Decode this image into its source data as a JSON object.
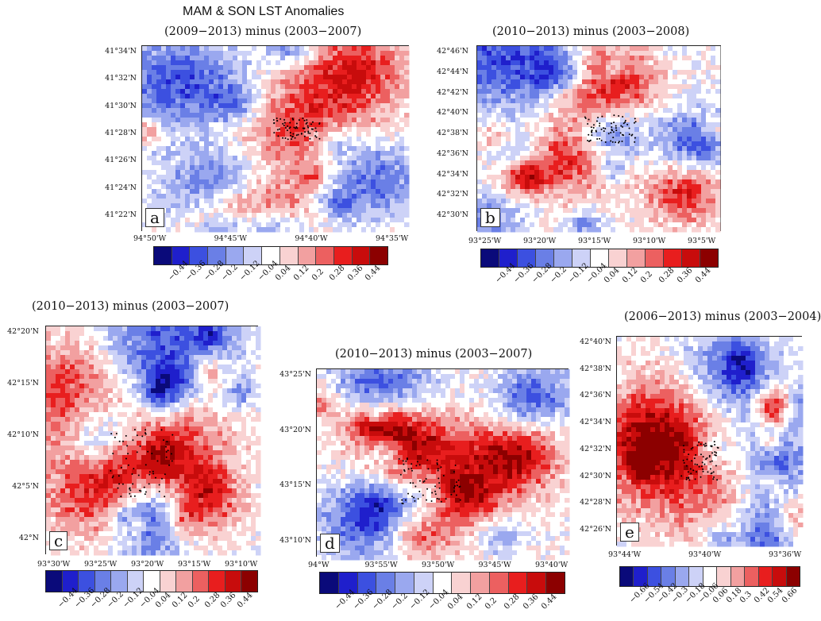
{
  "main_title": "MAM & SON LST Anomalies",
  "colors": [
    "#0a0a7a",
    "#1f1fcc",
    "#3c50e0",
    "#6a7fe6",
    "#9aa8ef",
    "#cdd2f7",
    "#ffffff",
    "#f9d2d2",
    "#f2a0a0",
    "#ec6060",
    "#e81e1e",
    "#c80c0c",
    "#8c0000"
  ],
  "chart_data": [
    {
      "panel": "a",
      "type": "heatmap",
      "title": "(2009−2013) minus (2003−2007)",
      "y_ticks": [
        "41°34'N",
        "41°32'N",
        "41°30'N",
        "41°28'N",
        "41°26'N",
        "41°24'N",
        "41°22'N"
      ],
      "x_ticks": [
        "94°50'W",
        "94°45'W",
        "94°40'W",
        "94°35'W"
      ],
      "colorbar": [
        "−0.44",
        "−0.36",
        "−0.28",
        "−0.2",
        "−0.12",
        "−0.04",
        "0.04",
        "0.12",
        "0.2",
        "0.28",
        "0.36",
        "0.44"
      ]
    },
    {
      "panel": "b",
      "type": "heatmap",
      "title": "(2010−2013) minus (2003−2008)",
      "y_ticks": [
        "42°46'N",
        "42°44'N",
        "42°42'N",
        "42°40'N",
        "42°38'N",
        "42°36'N",
        "42°34'N",
        "42°32'N",
        "42°30'N"
      ],
      "x_ticks": [
        "93°25'W",
        "93°20'W",
        "93°15'W",
        "93°10'W",
        "93°5'W"
      ],
      "colorbar": [
        "−0.44",
        "−0.36",
        "−0.28",
        "−0.2",
        "−0.12",
        "−0.04",
        "0.04",
        "0.12",
        "0.2",
        "0.28",
        "0.36",
        "0.44"
      ]
    },
    {
      "panel": "c",
      "type": "heatmap",
      "title": "(2010−2013) minus (2003−2007)",
      "y_ticks": [
        "42°20'N",
        "42°15'N",
        "42°10'N",
        "42°5'N",
        "42°N"
      ],
      "x_ticks": [
        "93°30'W",
        "93°25'W",
        "93°20'W",
        "93°15'W",
        "93°10'W"
      ],
      "colorbar": [
        "−0.44",
        "−0.36",
        "−0.28",
        "−0.2",
        "−0.12",
        "−0.04",
        "0.04",
        "0.12",
        "0.2",
        "0.28",
        "0.36",
        "0.44"
      ]
    },
    {
      "panel": "d",
      "type": "heatmap",
      "title": "(2010−2013) minus (2003−2007)",
      "y_ticks": [
        "43°25'N",
        "43°20'N",
        "43°15'N",
        "43°10'N"
      ],
      "x_ticks": [
        "94°W",
        "93°55'W",
        "93°50'W",
        "93°45'W",
        "93°40'W"
      ],
      "colorbar": [
        "−0.44",
        "−0.36",
        "−0.28",
        "−0.2",
        "−0.12",
        "−0.04",
        "0.04",
        "0.12",
        "0.2",
        "0.28",
        "0.36",
        "0.44"
      ]
    },
    {
      "panel": "e",
      "type": "heatmap",
      "title": "(2006−2013) minus (2003−2004)",
      "y_ticks": [
        "42°40'N",
        "42°38'N",
        "42°36'N",
        "42°34'N",
        "42°32'N",
        "42°30'N",
        "42°28'N",
        "42°26'N"
      ],
      "x_ticks": [
        "93°44'W",
        "93°40'W",
        "93°36'W"
      ],
      "colorbar": [
        "−0.66",
        "−0.54",
        "−0.42",
        "−0.3",
        "−0.18",
        "−0.06",
        "0.06",
        "0.18",
        "0.3",
        "0.42",
        "0.54",
        "0.66"
      ]
    }
  ]
}
